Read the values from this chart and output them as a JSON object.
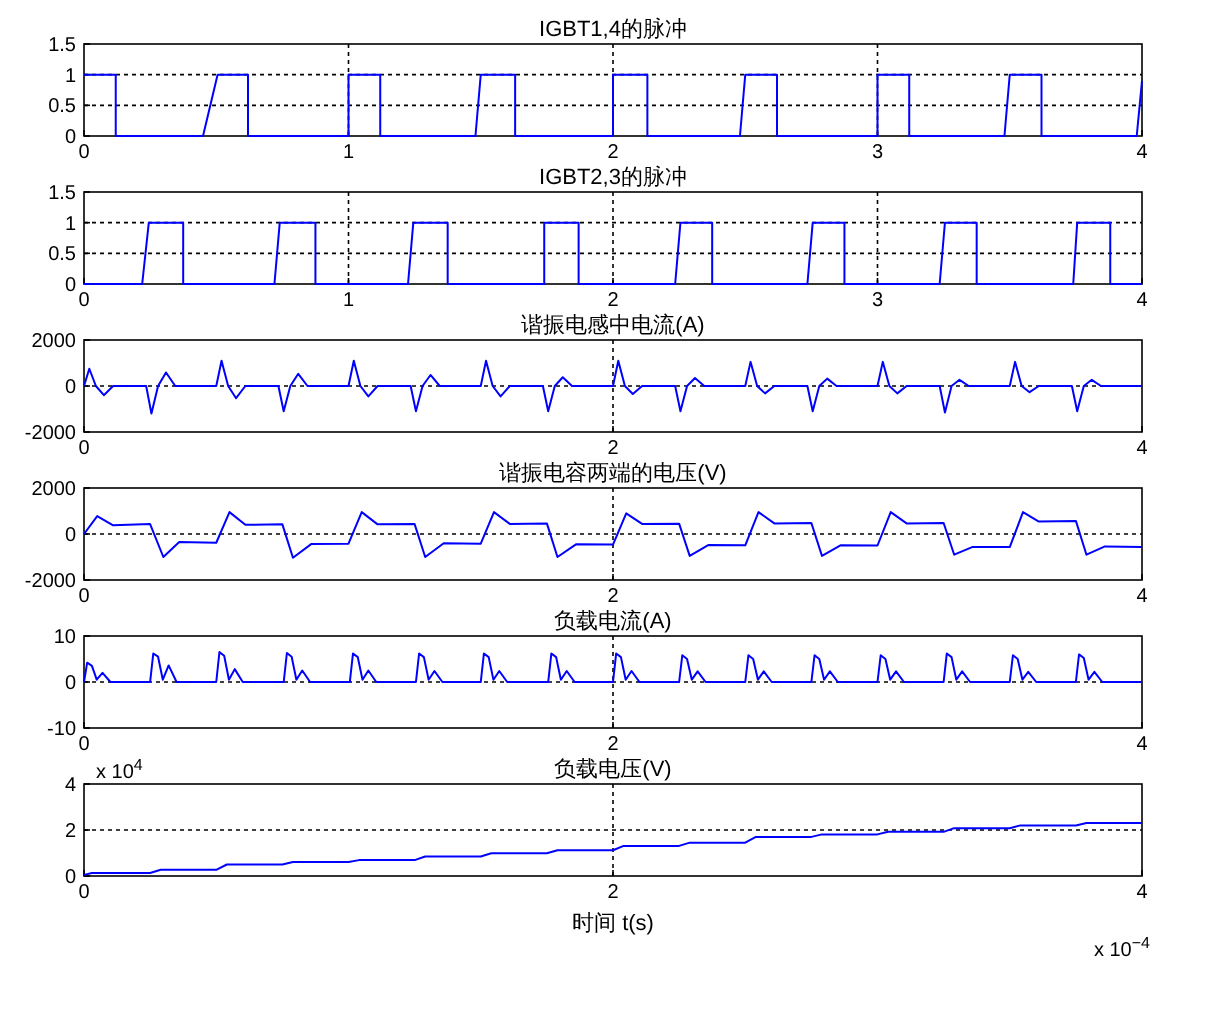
{
  "chart_data": [
    {
      "type": "line",
      "title": "IGBT1,4的脉冲",
      "xlim": [
        0,
        4
      ],
      "xticks": [
        0,
        1,
        2,
        3,
        4
      ],
      "ylim": [
        0,
        1.5
      ],
      "yticks": [
        0,
        0.5,
        1,
        1.5
      ],
      "grid": true,
      "series": [
        {
          "color": "#0000ff",
          "x": [
            0,
            0.12,
            0.12,
            0.45,
            0.505,
            0.62,
            0.62,
            1.0,
            1.0,
            1.12,
            1.12,
            1.48,
            1.5,
            1.63,
            1.63,
            2.0,
            2.0,
            2.13,
            2.13,
            2.48,
            2.5,
            2.62,
            2.62,
            3.0,
            3.0,
            3.12,
            3.12,
            3.48,
            3.5,
            3.62,
            3.62,
            3.98,
            4.0
          ],
          "values": [
            1,
            1,
            0,
            0,
            1,
            1,
            0,
            0,
            1,
            1,
            0,
            0,
            1,
            1,
            0,
            0,
            1,
            1,
            0,
            0,
            1,
            1,
            0,
            0,
            1,
            1,
            0,
            0,
            1,
            1,
            0,
            0,
            0.9
          ]
        }
      ]
    },
    {
      "type": "line",
      "title": "IGBT2,3的脉冲",
      "xlim": [
        0,
        4
      ],
      "xticks": [
        0,
        1,
        2,
        3,
        4
      ],
      "ylim": [
        0,
        1.5
      ],
      "yticks": [
        0,
        0.5,
        1,
        1.5
      ],
      "grid": true,
      "series": [
        {
          "color": "#0000ff",
          "x": [
            0,
            0.22,
            0.245,
            0.375,
            0.375,
            0.72,
            0.74,
            0.875,
            0.875,
            1.225,
            1.245,
            1.375,
            1.375,
            1.74,
            1.74,
            1.87,
            1.87,
            2.235,
            2.255,
            2.375,
            2.375,
            2.735,
            2.755,
            2.875,
            2.875,
            3.235,
            3.255,
            3.375,
            3.375,
            3.74,
            3.755,
            3.88,
            3.88,
            4.0
          ],
          "values": [
            0,
            0,
            1,
            1,
            0,
            0,
            1,
            1,
            0,
            0,
            1,
            1,
            0,
            0,
            1,
            1,
            0,
            0,
            1,
            1,
            0,
            0,
            1,
            1,
            0,
            0,
            1,
            1,
            0,
            0,
            1,
            1,
            0,
            0
          ]
        }
      ]
    },
    {
      "type": "line",
      "title": "谐振电感中电流(A)",
      "xlim": [
        0,
        4
      ],
      "xticks": [
        0,
        2,
        4
      ],
      "ylim": [
        -2000,
        2000
      ],
      "yticks": [
        -2000,
        0,
        2000
      ],
      "grid": true,
      "series": [
        {
          "color": "#0000ff",
          "x": [
            0,
            0.02,
            0.045,
            0.075,
            0.11,
            0.235,
            0.255,
            0.28,
            0.31,
            0.345,
            0.5,
            0.52,
            0.545,
            0.575,
            0.61,
            0.735,
            0.755,
            0.78,
            0.81,
            0.845,
            1.0,
            1.02,
            1.045,
            1.075,
            1.11,
            1.235,
            1.255,
            1.28,
            1.31,
            1.345,
            1.5,
            1.52,
            1.545,
            1.575,
            1.61,
            1.735,
            1.755,
            1.78,
            1.81,
            1.845,
            2.0,
            2.02,
            2.045,
            2.075,
            2.11,
            2.235,
            2.255,
            2.28,
            2.31,
            2.345,
            2.5,
            2.52,
            2.545,
            2.575,
            2.61,
            2.735,
            2.755,
            2.78,
            2.81,
            2.845,
            3.0,
            3.02,
            3.045,
            3.075,
            3.11,
            3.235,
            3.255,
            3.28,
            3.31,
            3.345,
            3.5,
            3.52,
            3.545,
            3.575,
            3.61,
            3.735,
            3.755,
            3.78,
            3.81,
            3.845,
            4.0
          ],
          "values": [
            0,
            750,
            0,
            -400,
            0,
            0,
            -1200,
            0,
            590,
            0,
            0,
            1100,
            0,
            -530,
            0,
            0,
            -1100,
            0,
            530,
            0,
            0,
            1100,
            0,
            -450,
            0,
            0,
            -1100,
            0,
            480,
            0,
            0,
            1100,
            0,
            -450,
            0,
            0,
            -1100,
            0,
            380,
            0,
            0,
            1100,
            0,
            -350,
            0,
            0,
            -1100,
            0,
            350,
            0,
            0,
            1050,
            0,
            -320,
            0,
            0,
            -1100,
            0,
            320,
            0,
            0,
            1050,
            0,
            -320,
            0,
            0,
            -1150,
            0,
            270,
            0,
            0,
            1050,
            0,
            -270,
            0,
            0,
            -1100,
            0,
            270,
            0,
            0
          ]
        }
      ]
    },
    {
      "type": "line",
      "title": "谐振电容两端的电压(V)",
      "xlim": [
        0,
        4
      ],
      "xticks": [
        0,
        2,
        4
      ],
      "ylim": [
        -2000,
        2000
      ],
      "yticks": [
        -2000,
        0,
        2000
      ],
      "grid": true,
      "series": [
        {
          "color": "#0000ff",
          "x": [
            0,
            0.05,
            0.11,
            0.25,
            0.3,
            0.36,
            0.5,
            0.55,
            0.61,
            0.75,
            0.79,
            0.86,
            1.0,
            1.05,
            1.11,
            1.25,
            1.29,
            1.36,
            1.5,
            1.55,
            1.61,
            1.75,
            1.79,
            1.86,
            2.0,
            2.05,
            2.11,
            2.25,
            2.29,
            2.36,
            2.5,
            2.55,
            2.61,
            2.75,
            2.79,
            2.86,
            3.0,
            3.05,
            3.11,
            3.25,
            3.29,
            3.36,
            3.5,
            3.55,
            3.61,
            3.75,
            3.79,
            3.86,
            4.0
          ],
          "values": [
            0,
            780,
            380,
            430,
            -1000,
            -350,
            -380,
            950,
            400,
            420,
            -1030,
            -430,
            -420,
            950,
            420,
            430,
            -1000,
            -400,
            -420,
            950,
            440,
            460,
            -1000,
            -450,
            -460,
            900,
            440,
            450,
            -950,
            -480,
            -490,
            950,
            460,
            480,
            -950,
            -490,
            -500,
            950,
            460,
            480,
            -900,
            -560,
            -570,
            950,
            540,
            570,
            -900,
            -540,
            -560
          ]
        }
      ]
    },
    {
      "type": "line",
      "title": "负载电流(A)",
      "xlim": [
        0,
        4
      ],
      "xticks": [
        0,
        2,
        4
      ],
      "ylim": [
        -10,
        10
      ],
      "yticks": [
        -10,
        0,
        10
      ],
      "grid": true,
      "series": [
        {
          "color": "#0000ff",
          "x": [
            0,
            0.012,
            0.03,
            0.048,
            0.07,
            0.1,
            0.25,
            0.262,
            0.28,
            0.298,
            0.32,
            0.35,
            0.5,
            0.512,
            0.53,
            0.548,
            0.57,
            0.6,
            0.755,
            0.767,
            0.785,
            0.803,
            0.825,
            0.855,
            1.005,
            1.017,
            1.035,
            1.053,
            1.075,
            1.105,
            1.255,
            1.267,
            1.285,
            1.303,
            1.325,
            1.355,
            1.5,
            1.512,
            1.53,
            1.548,
            1.57,
            1.6,
            1.755,
            1.767,
            1.785,
            1.803,
            1.825,
            1.855,
            2.0,
            2.012,
            2.03,
            2.048,
            2.07,
            2.1,
            2.25,
            2.262,
            2.28,
            2.298,
            2.32,
            2.35,
            2.5,
            2.512,
            2.53,
            2.548,
            2.57,
            2.6,
            2.75,
            2.762,
            2.78,
            2.798,
            2.82,
            2.85,
            3.0,
            3.012,
            3.03,
            3.048,
            3.07,
            3.1,
            3.25,
            3.262,
            3.28,
            3.298,
            3.32,
            3.35,
            3.5,
            3.512,
            3.53,
            3.548,
            3.57,
            3.6,
            3.75,
            3.762,
            3.78,
            3.798,
            3.82,
            3.85,
            4.0
          ],
          "values": [
            0,
            4.2,
            3.5,
            0.5,
            2.0,
            0,
            0,
            6.2,
            5.5,
            0.5,
            3.6,
            0,
            0,
            6.5,
            5.7,
            0.5,
            2.8,
            0,
            0,
            6.3,
            5.5,
            0.5,
            2.5,
            0,
            0,
            6.2,
            5.4,
            0.5,
            2.5,
            0,
            0,
            6.2,
            5.4,
            0.5,
            2.4,
            0,
            0,
            6.2,
            5.4,
            0.5,
            2.4,
            0,
            0,
            6.2,
            5.4,
            0.5,
            2.4,
            0,
            0,
            6.2,
            5.4,
            0.5,
            2.4,
            0,
            0,
            5.8,
            5.0,
            0.5,
            2.3,
            0,
            0,
            5.8,
            5.0,
            0.5,
            2.3,
            0,
            0,
            5.8,
            5.0,
            0.5,
            2.3,
            0,
            0,
            5.8,
            5.0,
            0.5,
            2.3,
            0,
            0,
            6.2,
            5.4,
            0.5,
            2.3,
            0,
            0,
            5.8,
            5.0,
            0.5,
            2.2,
            0,
            0,
            6.0,
            5.2,
            0.5,
            2.2,
            0,
            0
          ]
        }
      ]
    },
    {
      "type": "line",
      "title": "负载电压(V)",
      "xlabel": "时间  t(s)",
      "xlim": [
        0,
        4
      ],
      "xticks": [
        0,
        2,
        4
      ],
      "ylim": [
        0,
        4
      ],
      "yticks": [
        0,
        2,
        4
      ],
      "grid": true,
      "annotations": [
        "x 10$^{4}$",
        "x 10$^{−4}$"
      ],
      "series": [
        {
          "color": "#0000ff",
          "x": [
            0,
            0.03,
            0.25,
            0.29,
            0.5,
            0.54,
            0.75,
            0.79,
            1.0,
            1.04,
            1.25,
            1.29,
            1.5,
            1.54,
            1.75,
            1.79,
            2.0,
            2.04,
            2.25,
            2.29,
            2.5,
            2.54,
            2.75,
            2.79,
            3.0,
            3.04,
            3.25,
            3.29,
            3.5,
            3.54,
            3.75,
            3.79,
            4.0
          ],
          "values": [
            0.05,
            0.13,
            0.13,
            0.27,
            0.27,
            0.5,
            0.5,
            0.61,
            0.61,
            0.69,
            0.69,
            0.85,
            0.85,
            0.99,
            0.99,
            1.12,
            1.12,
            1.31,
            1.31,
            1.45,
            1.45,
            1.7,
            1.7,
            1.81,
            1.81,
            1.92,
            1.92,
            2.08,
            2.08,
            2.2,
            2.2,
            2.3,
            2.3
          ]
        }
      ]
    }
  ]
}
